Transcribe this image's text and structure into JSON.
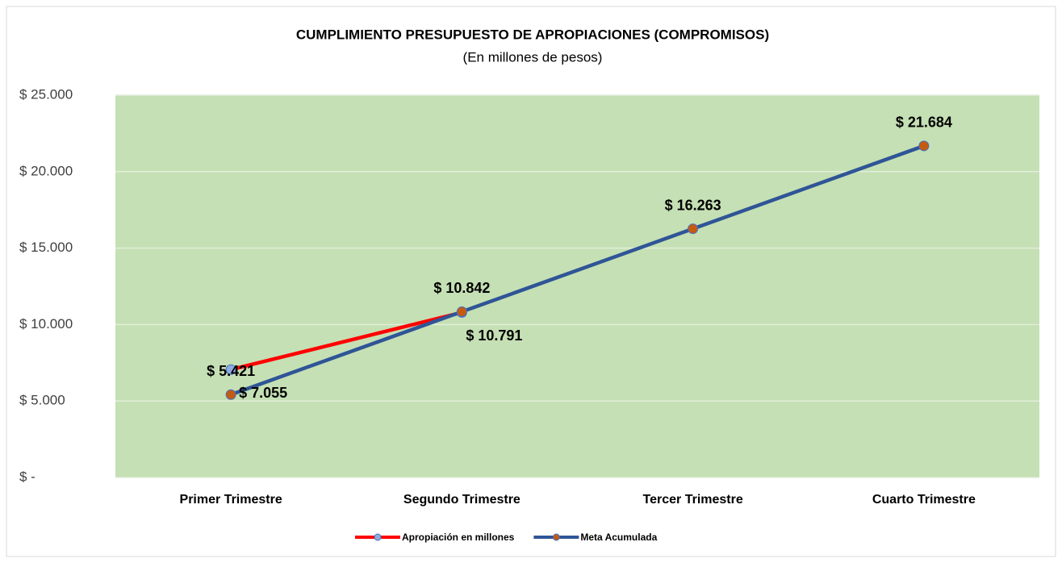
{
  "chart_data": {
    "type": "line",
    "title": "CUMPLIMIENTO PRESUPUESTO DE APROPIACIONES (COMPROMISOS)",
    "subtitle": "(En millones de pesos)",
    "categories": [
      "Primer Trimestre",
      "Segundo Trimestre",
      "Tercer Trimestre",
      "Cuarto Trimestre"
    ],
    "series": [
      {
        "name": "Apropiación en millones",
        "color": "#ff0000",
        "marker_color": "#8faadc",
        "values": [
          7055,
          10791,
          null,
          null
        ],
        "value_labels": [
          "$ 7.055",
          "$ 10.791",
          null,
          null
        ]
      },
      {
        "name": "Meta Acumulada",
        "color": "#2f5597",
        "marker_color": "#c55a11",
        "values": [
          5421,
          10842,
          16263,
          21684
        ],
        "value_labels": [
          "$ 5.421",
          "$ 10.842",
          "$ 16.263",
          "$ 21.684"
        ]
      }
    ],
    "ylim": [
      0,
      25000
    ],
    "yticks": [
      {
        "value": 0,
        "label": "$ -"
      },
      {
        "value": 5000,
        "label": "$ 5.000"
      },
      {
        "value": 10000,
        "label": "$ 10.000"
      },
      {
        "value": 15000,
        "label": "$ 15.000"
      },
      {
        "value": 20000,
        "label": "$ 20.000"
      },
      {
        "value": 25000,
        "label": "$ 25.000"
      }
    ],
    "grid": true,
    "plot_background": "#c5e0b4",
    "legend": "bottom"
  }
}
